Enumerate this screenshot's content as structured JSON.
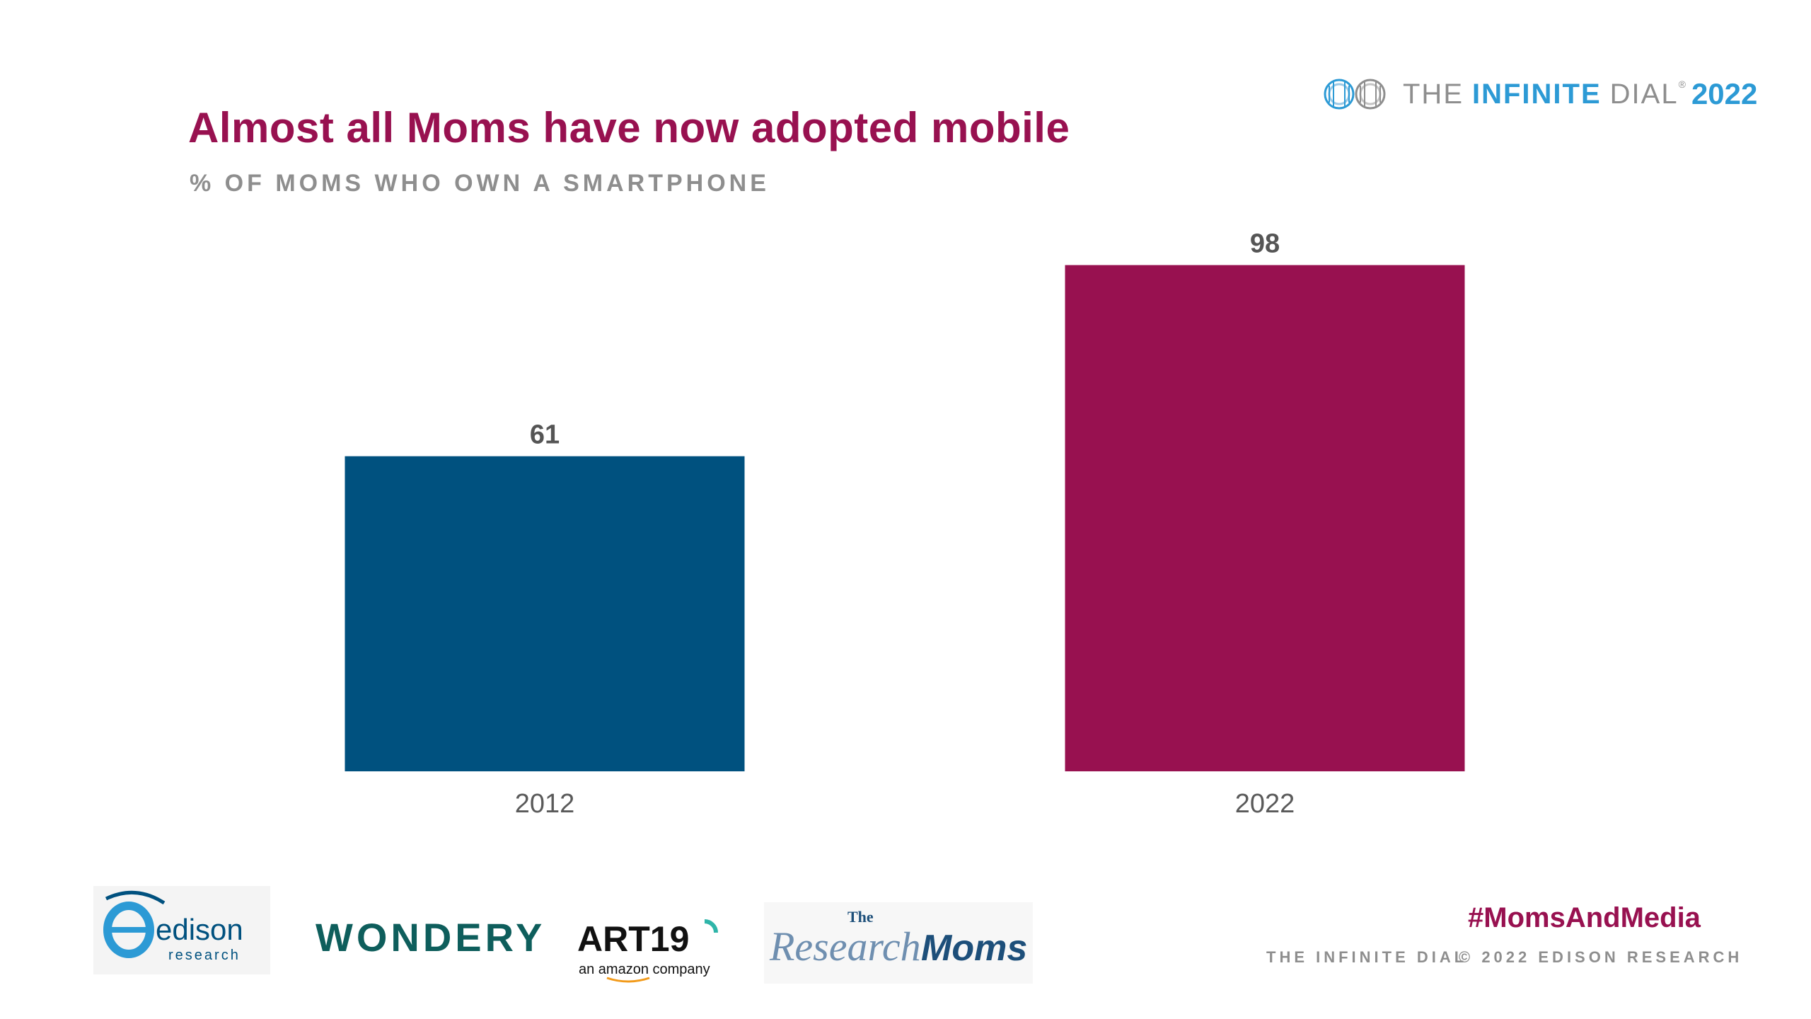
{
  "header": {
    "title": "Almost all Moms have now adopted mobile",
    "subtitle": "% OF MOMS WHO OWN A SMARTPHONE"
  },
  "brand": {
    "the": "THE",
    "infinite": "INFINITE",
    "dial": "DIAL",
    "registered": "®",
    "year": "2022"
  },
  "chart_data": {
    "type": "bar",
    "title": "Almost all Moms have now adopted mobile",
    "subtitle": "% OF MOMS WHO OWN A SMARTPHONE",
    "categories": [
      "2012",
      "2022"
    ],
    "values": [
      61,
      98
    ],
    "colors": [
      "#00517f",
      "#981150"
    ],
    "xlabel": "",
    "ylabel": "",
    "ylim": [
      0,
      100
    ],
    "grid": false,
    "legend": "none"
  },
  "footer": {
    "hashtag": "#MomsAndMedia",
    "left_text": "THE INFINITE DIAL",
    "right_text": "© 2022 EDISON RESEARCH",
    "logos": {
      "edison_word": "edison",
      "edison_sub": "research",
      "wondery": "WONDERY",
      "art19": "ART19",
      "art19_sub": "an amazon company",
      "researchmoms_the": "The",
      "researchmoms_research": "Research",
      "researchmoms_moms": "Moms"
    }
  },
  "colors": {
    "accent": "#981150",
    "blue": "#00517f",
    "brand_blue": "#2c9ad5",
    "gray": "#8e8e8e"
  }
}
